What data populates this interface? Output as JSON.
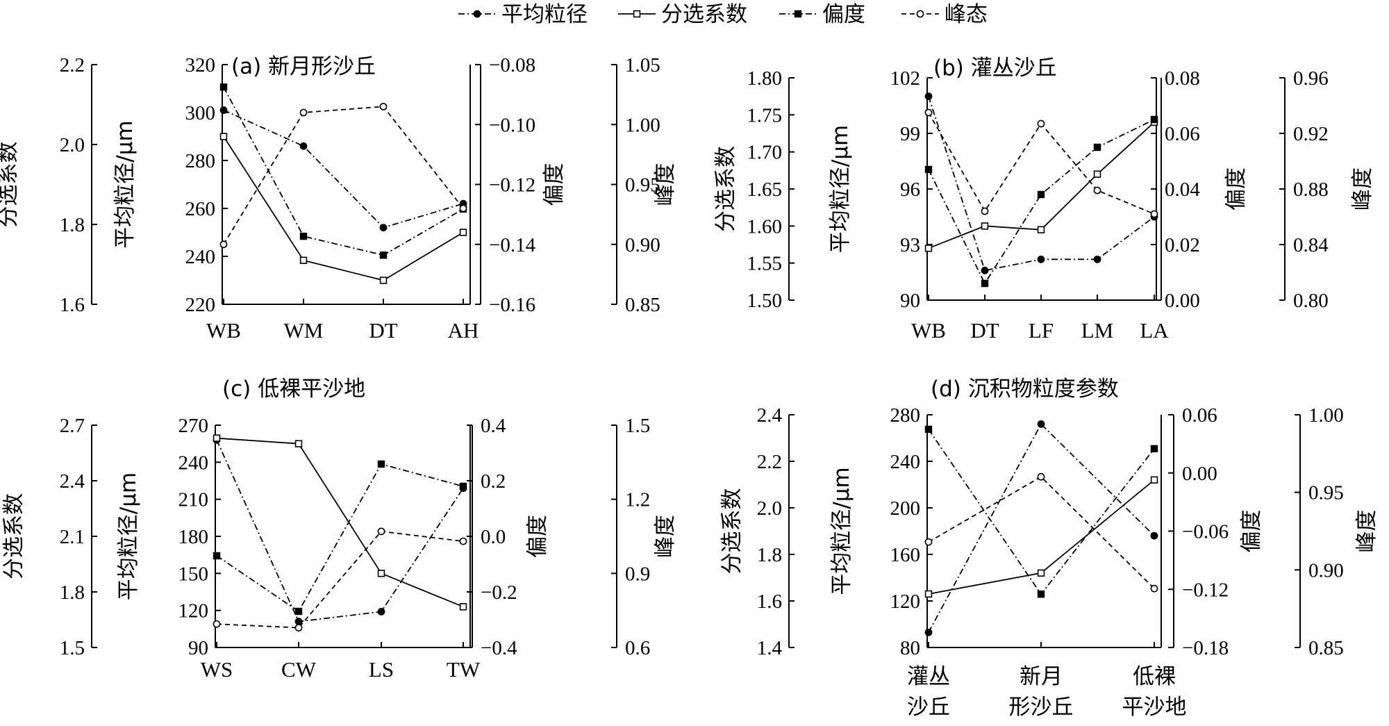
{
  "legend": {
    "items": [
      {
        "label": "平均粒径",
        "marker": "filled-circle",
        "line": "dash-dot"
      },
      {
        "label": "分选系数",
        "marker": "open-square",
        "line": "solid"
      },
      {
        "label": "偏度",
        "marker": "filled-square",
        "line": "dash-dot"
      },
      {
        "label": "峰态",
        "marker": "open-circle",
        "line": "dashed"
      }
    ]
  },
  "colors": {
    "ink": "#000000",
    "background": "#ffffff"
  },
  "chart_data": [
    {
      "id": "a",
      "type": "line",
      "title": "(a) 新月形沙丘",
      "categories": [
        "WB",
        "WM",
        "DT",
        "AH"
      ],
      "axes": {
        "sorting": {
          "label": "分选系数",
          "range": [
            1.6,
            2.2
          ],
          "ticks": [
            "1.6",
            "1.8",
            "2.0",
            "2.2"
          ]
        },
        "grain": {
          "label": "平均粒径/μm",
          "range": [
            220,
            320
          ],
          "ticks": [
            "220",
            "240",
            "260",
            "280",
            "300",
            "320"
          ]
        },
        "skew": {
          "label": "偏度",
          "range": [
            -0.16,
            -0.08
          ],
          "ticks": [
            "−0.16",
            "−0.14",
            "−0.12",
            "−0.10",
            "−0.08"
          ]
        },
        "kurt": {
          "label": "峰度",
          "range": [
            0.85,
            1.05
          ],
          "ticks": [
            "0.85",
            "0.90",
            "0.95",
            "1.00",
            "1.05"
          ]
        }
      },
      "series": [
        {
          "name": "平均粒径",
          "axis": "grain",
          "values": [
            301,
            286,
            252,
            262
          ]
        },
        {
          "name": "分选系数",
          "axis": "sorting",
          "values": [
            2.02,
            1.71,
            1.66,
            1.78
          ]
        },
        {
          "name": "偏度",
          "axis": "skew",
          "values": [
            -0.0875,
            -0.1373,
            -0.1436,
            -0.1282
          ]
        },
        {
          "name": "峰态",
          "axis": "kurt",
          "values": [
            0.9,
            1.01,
            1.015,
            0.93
          ]
        }
      ]
    },
    {
      "id": "b",
      "type": "line",
      "title": "(b) 灌丛沙丘",
      "categories": [
        "WB",
        "DT",
        "LF",
        "LM",
        "LA"
      ],
      "axes": {
        "sorting": {
          "label": "分选系数",
          "range": [
            1.5,
            1.8
          ],
          "ticks": [
            "1.50",
            "1.55",
            "1.60",
            "1.65",
            "1.70",
            "1.75",
            "1.80"
          ]
        },
        "grain": {
          "label": "平均粒径/μm",
          "range": [
            90,
            102
          ],
          "ticks": [
            "90",
            "93",
            "96",
            "99",
            "102"
          ]
        },
        "skew": {
          "label": "偏度",
          "range": [
            0.0,
            0.08
          ],
          "ticks": [
            "0.00",
            "0.02",
            "0.04",
            "0.06",
            "0.08"
          ]
        },
        "kurt": {
          "label": "峰度",
          "range": [
            0.8,
            0.96
          ],
          "ticks": [
            "0.80",
            "0.84",
            "0.88",
            "0.92",
            "0.96"
          ]
        }
      },
      "series": [
        {
          "name": "平均粒径",
          "axis": "grain",
          "values": [
            101.0,
            91.6,
            92.2,
            92.2,
            94.5
          ]
        },
        {
          "name": "分选系数",
          "axis": "sorting",
          "values": [
            1.57,
            1.6,
            1.595,
            1.67,
            1.74
          ]
        },
        {
          "name": "偏度",
          "axis": "skew",
          "values": [
            0.047,
            0.006,
            0.038,
            0.055,
            0.065
          ]
        },
        {
          "name": "峰态",
          "axis": "kurt",
          "values": [
            0.935,
            0.864,
            0.927,
            0.879,
            0.862
          ]
        }
      ]
    },
    {
      "id": "c",
      "type": "line",
      "title": "(c) 低裸平沙地",
      "categories": [
        "WS",
        "CW",
        "LS",
        "TW"
      ],
      "axes": {
        "sorting": {
          "label": "分选系数",
          "range": [
            1.5,
            2.7
          ],
          "ticks": [
            "1.5",
            "1.8",
            "2.1",
            "2.4",
            "2.7"
          ]
        },
        "grain": {
          "label": "平均粒径/μm",
          "range": [
            90,
            270
          ],
          "ticks": [
            "90",
            "120",
            "150",
            "180",
            "210",
            "240",
            "270"
          ]
        },
        "skew": {
          "label": "偏度",
          "range": [
            -0.4,
            0.4
          ],
          "ticks": [
            "−0.4",
            "−0.2",
            "0.0",
            "0.2",
            "0.4"
          ]
        },
        "kurt": {
          "label": "峰度",
          "range": [
            0.6,
            1.5
          ],
          "ticks": [
            "0.6",
            "0.9",
            "1.2",
            "1.5"
          ]
        }
      },
      "series": [
        {
          "name": "平均粒径",
          "axis": "grain",
          "values": [
            258,
            111,
            119,
            219
          ]
        },
        {
          "name": "分选系数",
          "axis": "sorting",
          "values": [
            2.63,
            2.6,
            1.9,
            1.72
          ]
        },
        {
          "name": "偏度",
          "axis": "skew",
          "values": [
            -0.07,
            -0.27,
            0.26,
            0.18
          ]
        },
        {
          "name": "峰态",
          "axis": "kurt",
          "values": [
            0.695,
            0.68,
            1.07,
            1.03
          ]
        }
      ]
    },
    {
      "id": "d",
      "type": "line",
      "title": "(d) 沉积物粒度参数",
      "categories": [
        "灌丛\n沙丘",
        "新月\n形沙丘",
        "低裸\n平沙地"
      ],
      "axes": {
        "sorting": {
          "label": "分选系数",
          "range": [
            1.4,
            2.4
          ],
          "ticks": [
            "1.4",
            "1.6",
            "1.8",
            "2.0",
            "2.2",
            "2.4"
          ]
        },
        "grain": {
          "label": "平均粒径/μm",
          "range": [
            80,
            280
          ],
          "ticks": [
            "80",
            "120",
            "160",
            "200",
            "240",
            "280"
          ]
        },
        "skew": {
          "label": "偏度",
          "range": [
            -0.18,
            0.06
          ],
          "ticks": [
            "−0.18",
            "−0.12",
            "−0.06",
            "0.00",
            "0.06"
          ]
        },
        "kurt": {
          "label": "峰度",
          "range": [
            0.85,
            1.0
          ],
          "ticks": [
            "0.85",
            "0.90",
            "0.95",
            "1.00"
          ]
        }
      },
      "series": [
        {
          "name": "平均粒径",
          "axis": "grain",
          "values": [
            93,
            272,
            176
          ]
        },
        {
          "name": "分选系数",
          "axis": "sorting",
          "values": [
            1.63,
            1.72,
            2.12
          ]
        },
        {
          "name": "偏度",
          "axis": "skew",
          "values": [
            0.045,
            -0.125,
            0.025
          ]
        },
        {
          "name": "峰态",
          "axis": "kurt",
          "values": [
            0.918,
            0.96,
            0.888
          ]
        }
      ]
    }
  ]
}
